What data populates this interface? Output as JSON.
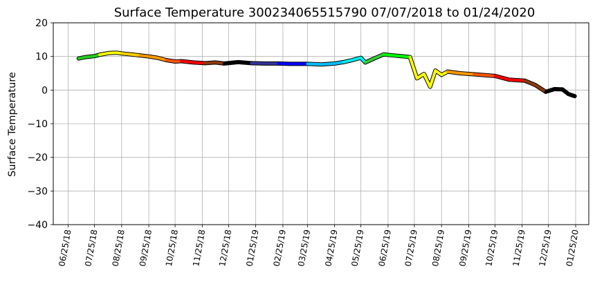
{
  "chart_data": {
    "type": "line",
    "title": "Surface Temperature 300234065515790  07/07/2018 to 01/24/2020",
    "ylabel": "Surface Temperature",
    "xlabel": "",
    "ylim": [
      -40,
      20
    ],
    "yticks": [
      20,
      10,
      0,
      -10,
      -20,
      -30,
      -40
    ],
    "ytick_labels": [
      "20",
      "10",
      "0",
      "−10",
      "−20",
      "−30",
      "−40"
    ],
    "xlim": [
      "2018-06-08",
      "2020-02-09"
    ],
    "xticks": [
      "2018-06-25",
      "2018-07-25",
      "2018-08-25",
      "2018-09-25",
      "2018-10-25",
      "2018-11-25",
      "2018-12-25",
      "2019-01-25",
      "2019-02-25",
      "2019-03-25",
      "2019-04-25",
      "2019-05-25",
      "2019-06-25",
      "2019-07-25",
      "2019-08-25",
      "2019-09-25",
      "2019-10-25",
      "2019-11-25",
      "2019-12-25",
      "2020-01-25"
    ],
    "xtick_labels": [
      "06/25/18",
      "07/25/18",
      "08/25/18",
      "09/25/18",
      "10/25/18",
      "11/25/18",
      "12/25/18",
      "01/25/19",
      "02/25/19",
      "03/25/19",
      "04/25/19",
      "05/25/19",
      "06/25/19",
      "07/25/19",
      "08/25/19",
      "09/25/19",
      "10/25/19",
      "11/25/19",
      "12/25/19",
      "01/25/20"
    ],
    "grid": true,
    "series": [
      {
        "color": "#22cc22",
        "x": [
          "2018-07-07",
          "2018-07-15",
          "2018-07-25",
          "2018-07-31"
        ],
        "y": [
          9.4,
          9.8,
          10.1,
          10.5
        ]
      },
      {
        "color": "#ffff00",
        "x": [
          "2018-07-31",
          "2018-08-10",
          "2018-08-20",
          "2018-08-25"
        ],
        "y": [
          10.5,
          11.0,
          11.1,
          10.9
        ]
      },
      {
        "color": "#ffd000",
        "x": [
          "2018-08-25",
          "2018-09-05",
          "2018-09-15"
        ],
        "y": [
          10.9,
          10.6,
          10.3
        ]
      },
      {
        "color": "#ff9900",
        "x": [
          "2018-09-15",
          "2018-09-25",
          "2018-10-05",
          "2018-10-15"
        ],
        "y": [
          10.3,
          10.0,
          9.6,
          8.9
        ]
      },
      {
        "color": "#ff5500",
        "x": [
          "2018-10-15",
          "2018-10-25",
          "2018-11-01"
        ],
        "y": [
          8.9,
          8.5,
          8.6
        ]
      },
      {
        "color": "#ff0000",
        "x": [
          "2018-11-01",
          "2018-11-15",
          "2018-11-28"
        ],
        "y": [
          8.6,
          8.2,
          8.0
        ]
      },
      {
        "color": "#8b3a0f",
        "x": [
          "2018-11-28",
          "2018-12-10",
          "2018-12-20"
        ],
        "y": [
          8.0,
          8.2,
          7.9
        ]
      },
      {
        "color": "#000000",
        "x": [
          "2018-12-20",
          "2019-01-05",
          "2019-01-20"
        ],
        "y": [
          7.9,
          8.3,
          8.0
        ]
      },
      {
        "color": "#333399",
        "x": [
          "2019-01-20",
          "2019-02-05",
          "2019-02-20"
        ],
        "y": [
          8.0,
          7.9,
          7.9
        ]
      },
      {
        "color": "#0000ff",
        "x": [
          "2019-02-20",
          "2019-03-05",
          "2019-03-25"
        ],
        "y": [
          7.9,
          7.8,
          7.8
        ]
      },
      {
        "color": "#00bfff",
        "x": [
          "2019-03-25",
          "2019-04-10",
          "2019-04-25",
          "2019-05-05"
        ],
        "y": [
          7.8,
          7.6,
          7.9,
          8.3
        ]
      },
      {
        "color": "#00eeee",
        "x": [
          "2019-05-05",
          "2019-05-15",
          "2019-05-25",
          "2019-05-30"
        ],
        "y": [
          8.3,
          8.9,
          9.6,
          8.2
        ]
      },
      {
        "color": "#33cc33",
        "x": [
          "2019-05-30",
          "2019-06-10",
          "2019-06-20"
        ],
        "y": [
          8.2,
          9.5,
          10.6
        ]
      },
      {
        "color": "#00ff00",
        "x": [
          "2019-06-20",
          "2019-07-01",
          "2019-07-10",
          "2019-07-20"
        ],
        "y": [
          10.6,
          10.3,
          10.1,
          9.8
        ]
      },
      {
        "color": "#ffff00",
        "x": [
          "2019-07-20",
          "2019-07-28",
          "2019-08-05",
          "2019-08-12",
          "2019-08-18",
          "2019-08-25",
          "2019-09-01"
        ],
        "y": [
          9.8,
          3.5,
          4.8,
          1.0,
          5.8,
          4.5,
          5.5
        ]
      },
      {
        "color": "#ff9900",
        "x": [
          "2019-09-01",
          "2019-09-15",
          "2019-10-01"
        ],
        "y": [
          5.5,
          5.0,
          4.7
        ]
      },
      {
        "color": "#ff5500",
        "x": [
          "2019-10-01",
          "2019-10-15",
          "2019-10-25"
        ],
        "y": [
          4.7,
          4.4,
          4.2
        ]
      },
      {
        "color": "#ff0000",
        "x": [
          "2019-10-25",
          "2019-11-10",
          "2019-11-28"
        ],
        "y": [
          4.2,
          3.1,
          2.8
        ]
      },
      {
        "color": "#8b3a0f",
        "x": [
          "2019-11-28",
          "2019-12-10",
          "2019-12-22"
        ],
        "y": [
          2.8,
          1.5,
          -0.5
        ]
      },
      {
        "color": "#000000",
        "x": [
          "2019-12-22",
          "2020-01-01",
          "2020-01-10",
          "2020-01-17",
          "2020-01-24"
        ],
        "y": [
          -0.5,
          0.3,
          0.2,
          -1.2,
          -1.8
        ]
      }
    ]
  }
}
